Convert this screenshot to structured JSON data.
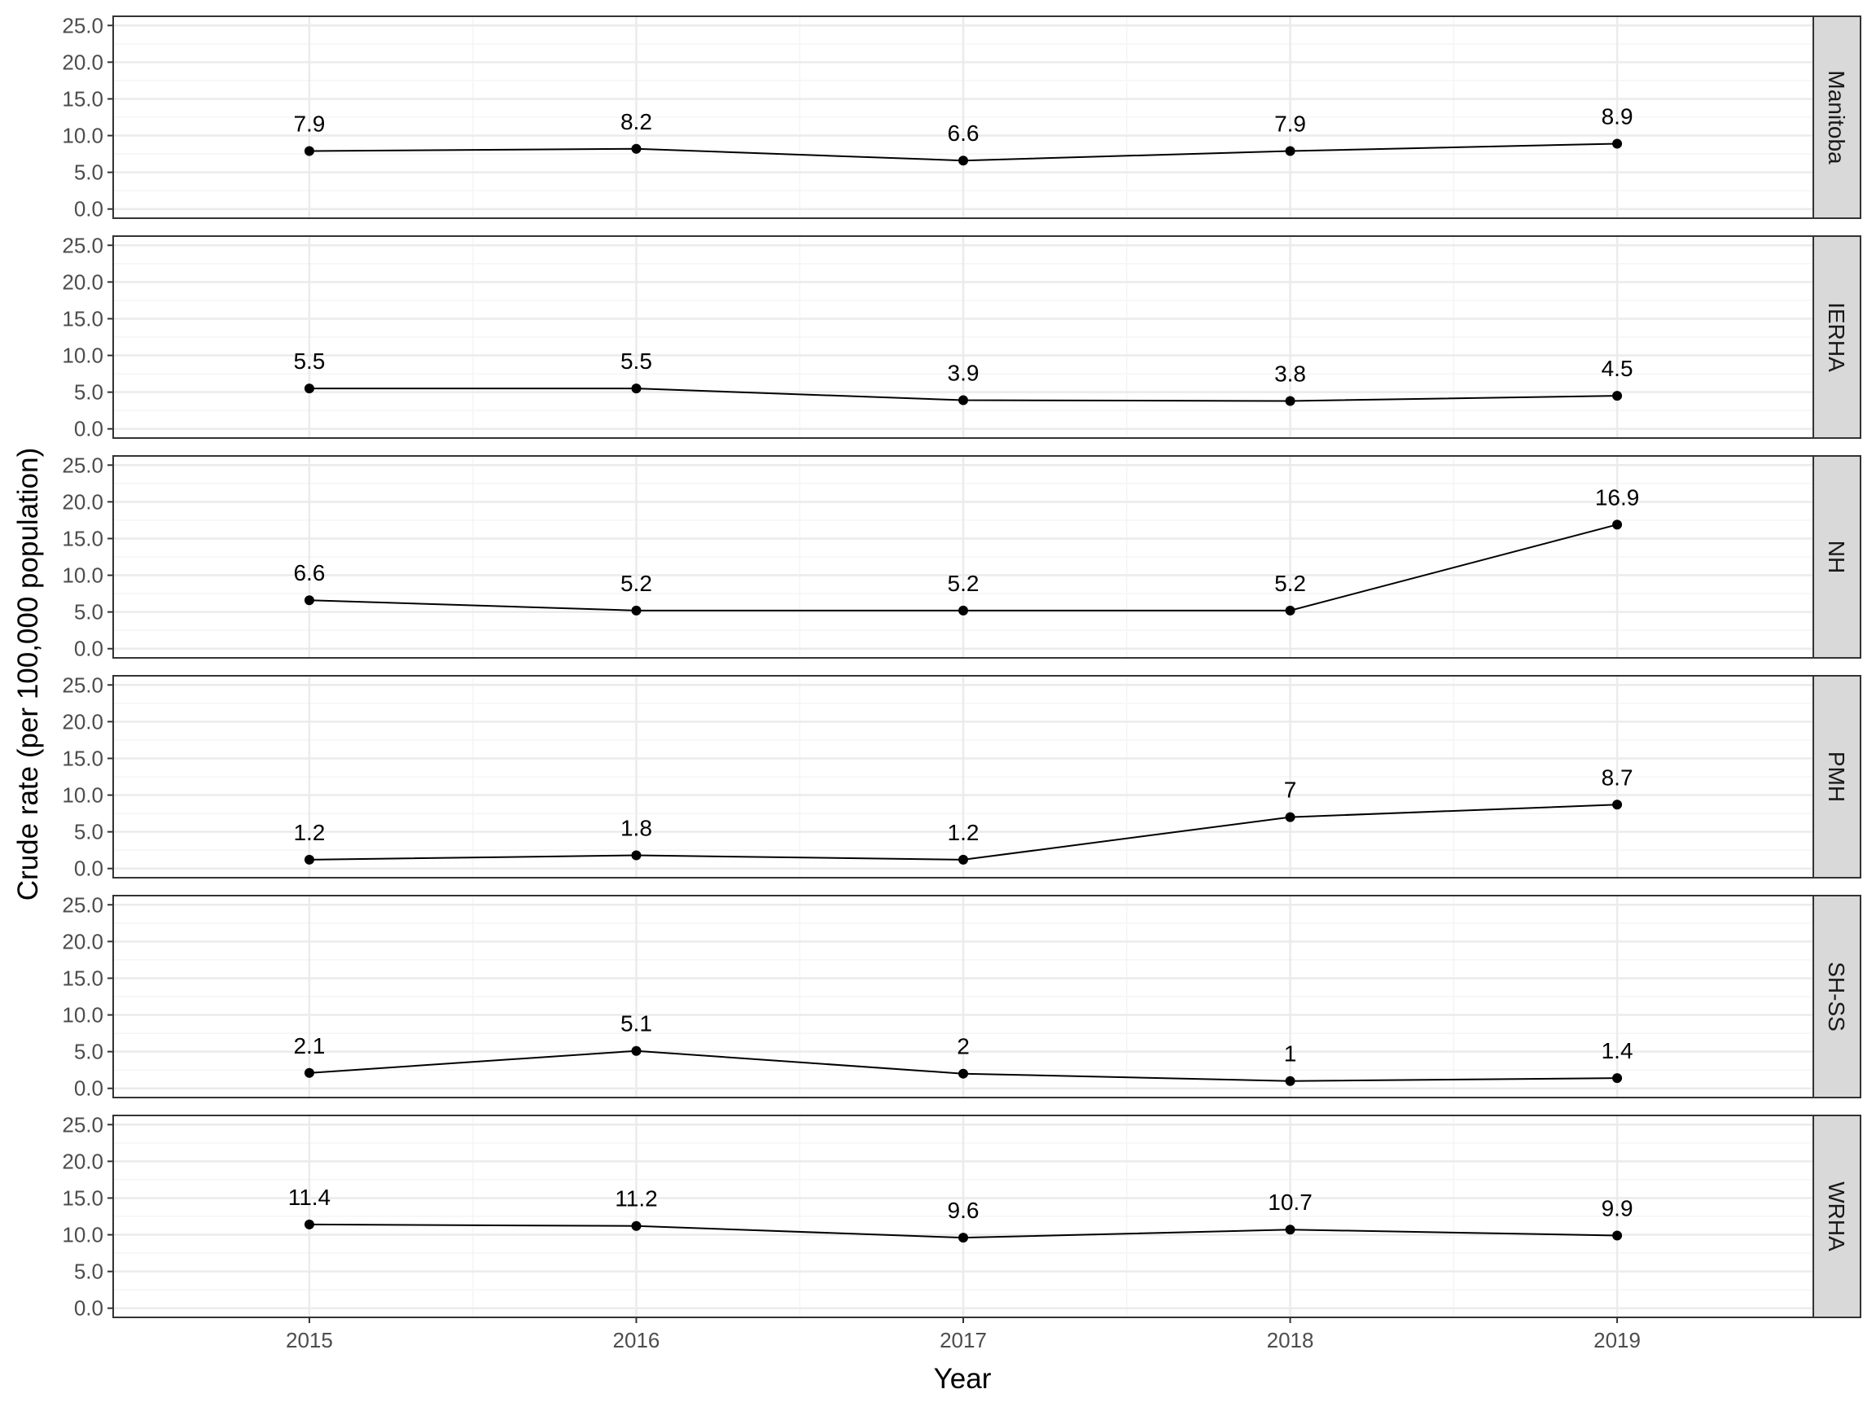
{
  "chart_data": {
    "type": "line",
    "layout": "faceted (one panel per region, stacked vertically, shared x axis)",
    "xlabel": "Year",
    "ylabel": "Crude rate (per 100,000 population)",
    "x": [
      2015,
      2016,
      2017,
      2018,
      2019
    ],
    "x_tick_labels": [
      "2015",
      "2016",
      "2017",
      "2018",
      "2019"
    ],
    "xlim": [
      2014.4,
      2019.6
    ],
    "ylim": [
      -1.25,
      26.25
    ],
    "y_ticks": [
      0,
      5,
      10,
      15,
      20,
      25
    ],
    "y_tick_labels": [
      "0.0",
      "5.0",
      "10.0",
      "15.0",
      "20.0",
      "25.0"
    ],
    "grid": true,
    "legend": "none",
    "series": [
      {
        "name": "Manitoba",
        "values": [
          7.9,
          8.2,
          6.6,
          7.9,
          8.9
        ],
        "labels": [
          "7.9",
          "8.2",
          "6.6",
          "7.9",
          "8.9"
        ]
      },
      {
        "name": "IERHA",
        "values": [
          5.5,
          5.5,
          3.9,
          3.8,
          4.5
        ],
        "labels": [
          "5.5",
          "5.5",
          "3.9",
          "3.8",
          "4.5"
        ]
      },
      {
        "name": "NH",
        "values": [
          6.6,
          5.2,
          5.2,
          5.2,
          16.9
        ],
        "labels": [
          "6.6",
          "5.2",
          "5.2",
          "5.2",
          "16.9"
        ]
      },
      {
        "name": "PMH",
        "values": [
          1.2,
          1.8,
          1.2,
          7,
          8.7
        ],
        "labels": [
          "1.2",
          "1.8",
          "1.2",
          "7",
          "8.7"
        ]
      },
      {
        "name": "SH-SS",
        "values": [
          2.1,
          5.1,
          2,
          1,
          1.4
        ],
        "labels": [
          "2.1",
          "5.1",
          "2",
          "1",
          "1.4"
        ]
      },
      {
        "name": "WRHA",
        "values": [
          11.4,
          11.2,
          9.6,
          10.7,
          9.9
        ],
        "labels": [
          "11.4",
          "11.2",
          "9.6",
          "10.7",
          "9.9"
        ]
      }
    ]
  },
  "colors": {
    "line": "#000000",
    "panel_border": "#333333",
    "grid_major": "#ebebeb",
    "grid_minor": "#f5f5f5",
    "strip_fill": "#d9d9d9",
    "tick_text": "#4d4d4d"
  }
}
